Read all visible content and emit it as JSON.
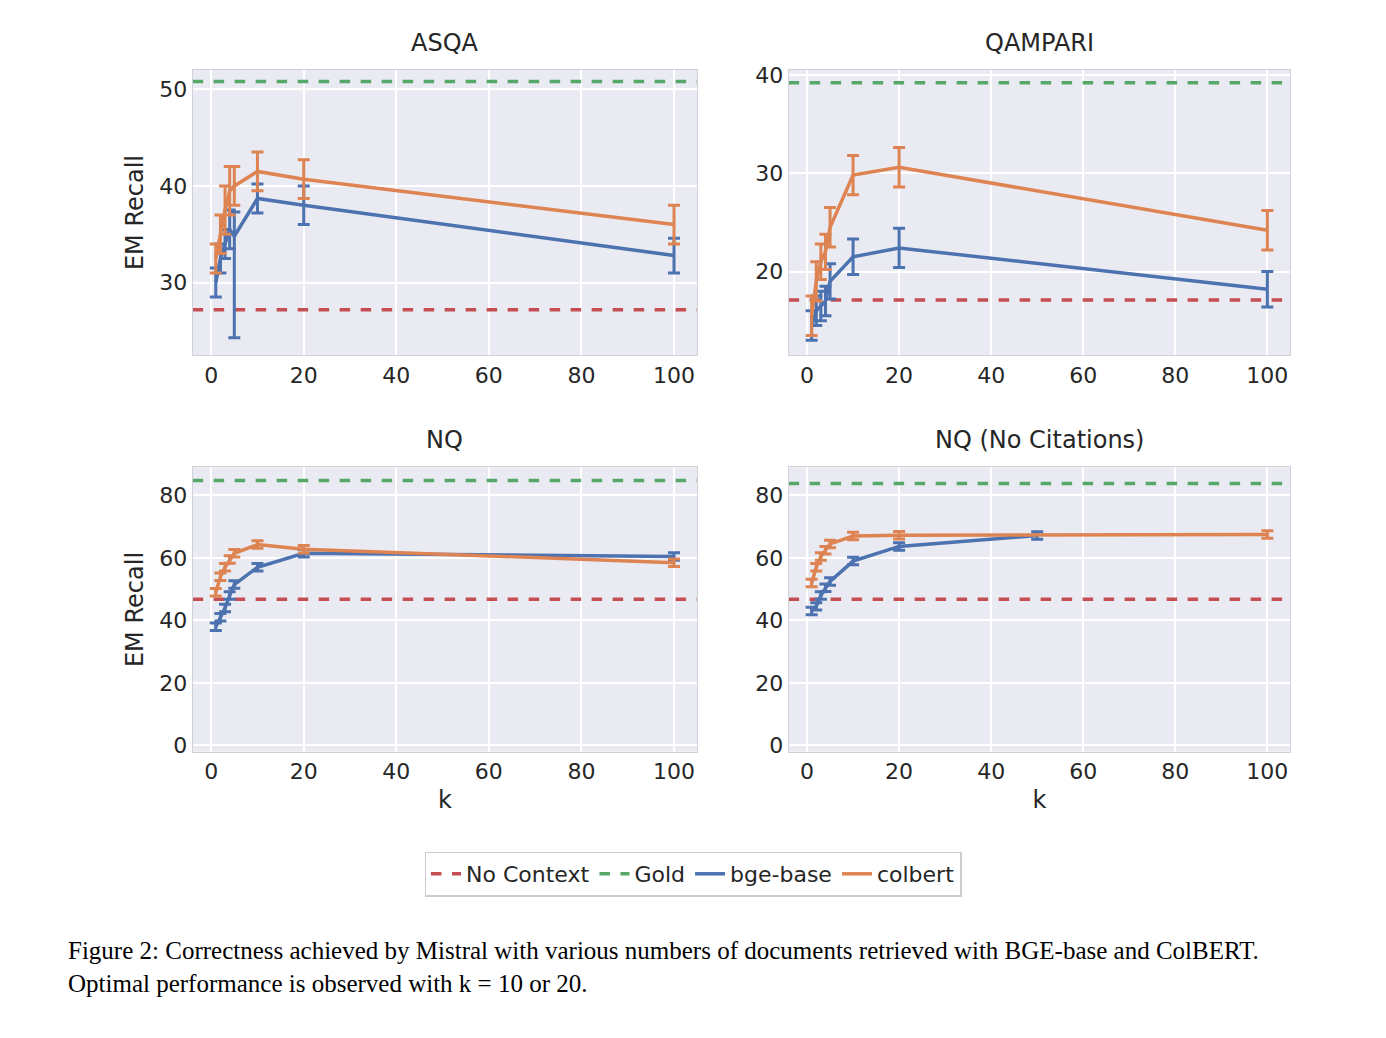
{
  "chart_data": [
    {
      "type": "line",
      "title": "ASQA",
      "ylabel": "EM Recall",
      "grid": true,
      "legend": "bottom",
      "xlim": [
        -4,
        105
      ],
      "xticks": [
        0,
        20,
        40,
        60,
        80,
        100
      ],
      "ylim": [
        22.5,
        52
      ],
      "yticks": [
        30,
        40,
        50
      ],
      "series": [
        {
          "name": "No Context",
          "type": "hline",
          "color": "#c44e52",
          "line_style": "dashed",
          "values": [
            27.2
          ]
        },
        {
          "name": "Gold",
          "type": "hline",
          "color": "#55a868",
          "line_style": "dashed",
          "values": [
            50.8
          ]
        },
        {
          "name": "bge-base",
          "color": "#4c72b0",
          "line_style": "solid",
          "x": [
            1,
            2,
            3,
            4,
            5,
            10,
            20,
            100
          ],
          "values": [
            30,
            32.5,
            34,
            35.5,
            34.8,
            38.7,
            38,
            32.8
          ],
          "error": [
            1.5,
            1.5,
            1.5,
            2,
            2.5,
            1.5,
            2,
            1.8
          ],
          "error_minus": [
            1.5,
            1.5,
            1.5,
            2,
            10.5,
            1.5,
            2,
            1.8
          ]
        },
        {
          "name": "colbert",
          "color": "#dd8452",
          "line_style": "solid",
          "x": [
            1,
            2,
            3,
            4,
            5,
            10,
            20,
            100
          ],
          "values": [
            32.5,
            35,
            37.5,
            39.5,
            40,
            41.5,
            40.7,
            36
          ],
          "error": [
            1.5,
            2,
            2.5,
            2.5,
            2,
            2,
            2,
            2
          ],
          "error_minus": [
            1.5,
            2,
            2.5,
            2.5,
            2,
            2,
            2,
            2
          ]
        }
      ]
    },
    {
      "type": "line",
      "title": "QAMPARI",
      "grid": true,
      "legend": "bottom",
      "xlim": [
        -4,
        105
      ],
      "xticks": [
        0,
        20,
        40,
        60,
        80,
        100
      ],
      "ylim": [
        11.5,
        40.5
      ],
      "yticks": [
        20,
        30,
        40
      ],
      "series": [
        {
          "name": "No Context",
          "type": "hline",
          "color": "#c44e52",
          "line_style": "dashed",
          "values": [
            17.1
          ]
        },
        {
          "name": "Gold",
          "type": "hline",
          "color": "#55a868",
          "line_style": "dashed",
          "values": [
            39.2
          ]
        },
        {
          "name": "bge-base",
          "color": "#4c72b0",
          "line_style": "solid",
          "x": [
            1,
            2,
            3,
            4,
            5,
            10,
            20,
            100
          ],
          "values": [
            14.5,
            16,
            16.5,
            17,
            19,
            21.5,
            22.4,
            18.2
          ],
          "error": [
            1.5,
            1.5,
            1.5,
            1.5,
            1.8,
            1.8,
            2,
            1.8
          ],
          "error_minus": [
            1.5,
            1.5,
            1.5,
            1.5,
            1.8,
            1.8,
            2,
            1.8
          ]
        },
        {
          "name": "colbert",
          "color": "#dd8452",
          "line_style": "solid",
          "x": [
            1,
            2,
            3,
            4,
            5,
            10,
            20,
            100
          ],
          "values": [
            15.5,
            19,
            21,
            22,
            24.5,
            29.8,
            30.6,
            24.2
          ],
          "error": [
            2,
            2,
            1.8,
            1.8,
            2,
            2,
            2,
            2
          ],
          "error_minus": [
            2,
            2,
            1.8,
            1.8,
            2,
            2,
            2,
            2
          ]
        }
      ]
    },
    {
      "type": "line",
      "title": "NQ",
      "xlabel": "k",
      "ylabel": "EM Recall",
      "grid": true,
      "legend": "bottom",
      "xlim": [
        -4,
        105
      ],
      "xticks": [
        0,
        20,
        40,
        60,
        80,
        100
      ],
      "ylim": [
        -2,
        89
      ],
      "yticks": [
        0,
        20,
        40,
        60,
        80
      ],
      "series": [
        {
          "name": "No Context",
          "type": "hline",
          "color": "#c44e52",
          "line_style": "dashed",
          "values": [
            46.8
          ]
        },
        {
          "name": "Gold",
          "type": "hline",
          "color": "#55a868",
          "line_style": "dashed",
          "values": [
            84.8
          ]
        },
        {
          "name": "bge-base",
          "color": "#4c72b0",
          "line_style": "solid",
          "x": [
            1,
            2,
            3,
            4,
            5,
            10,
            20,
            100
          ],
          "values": [
            38,
            41,
            44,
            48,
            51.5,
            57,
            61.5,
            60.5
          ],
          "error": [
            1.2,
            1.2,
            1.2,
            1.2,
            1.2,
            1.2,
            1.2,
            1.2
          ],
          "error_minus": [
            1.2,
            1.2,
            1.2,
            1.2,
            1.2,
            1.2,
            1.2,
            1.2
          ]
        },
        {
          "name": "colbert",
          "color": "#dd8452",
          "line_style": "solid",
          "x": [
            1,
            2,
            3,
            4,
            5,
            10,
            20,
            100
          ],
          "values": [
            49,
            54,
            57,
            59.5,
            61.5,
            64.3,
            62.8,
            58.5
          ],
          "error": [
            1.2,
            1.2,
            1.2,
            1.2,
            1.2,
            1.2,
            1.2,
            1.2
          ],
          "error_minus": [
            1.2,
            1.2,
            1.2,
            1.2,
            1.2,
            1.2,
            1.2,
            1.2
          ]
        }
      ]
    },
    {
      "type": "line",
      "title": "NQ (No Citations)",
      "xlabel": "k",
      "grid": true,
      "legend": "bottom",
      "xlim": [
        -4,
        105
      ],
      "xticks": [
        0,
        20,
        40,
        60,
        80,
        100
      ],
      "ylim": [
        -2,
        89
      ],
      "yticks": [
        0,
        20,
        40,
        60,
        80
      ],
      "series": [
        {
          "name": "No Context",
          "type": "hline",
          "color": "#c44e52",
          "line_style": "dashed",
          "values": [
            46.8
          ]
        },
        {
          "name": "Gold",
          "type": "hline",
          "color": "#55a868",
          "line_style": "dashed",
          "values": [
            83.8
          ]
        },
        {
          "name": "bge-base",
          "color": "#4c72b0",
          "line_style": "solid",
          "x": [
            1,
            2,
            3,
            4,
            5,
            10,
            20,
            50
          ],
          "values": [
            43,
            44.5,
            48,
            50.5,
            52.5,
            59,
            63.7,
            67.2
          ],
          "error": [
            1.2,
            1.2,
            1.2,
            1.2,
            1.2,
            1.2,
            1.2,
            1.2
          ],
          "error_minus": [
            1.2,
            1.2,
            1.2,
            1.2,
            1.2,
            1.2,
            1.2,
            1.2
          ]
        },
        {
          "name": "colbert",
          "color": "#dd8452",
          "line_style": "solid",
          "x": [
            1,
            2,
            3,
            4,
            5,
            10,
            20,
            100
          ],
          "values": [
            52,
            57,
            60.5,
            62.5,
            64.5,
            67,
            67.3,
            67.5
          ],
          "error": [
            1.2,
            1.2,
            1.2,
            1.2,
            1.2,
            1.2,
            1.2,
            1.2
          ],
          "error_minus": [
            1.2,
            1.2,
            1.2,
            1.2,
            1.2,
            1.2,
            1.2,
            1.2
          ]
        }
      ]
    }
  ],
  "caption": "Figure 2: Correctness achieved by Mistral with various numbers of documents retrieved with BGE-base and ColBERT. Optimal performance is observed with k = 10 or 20."
}
